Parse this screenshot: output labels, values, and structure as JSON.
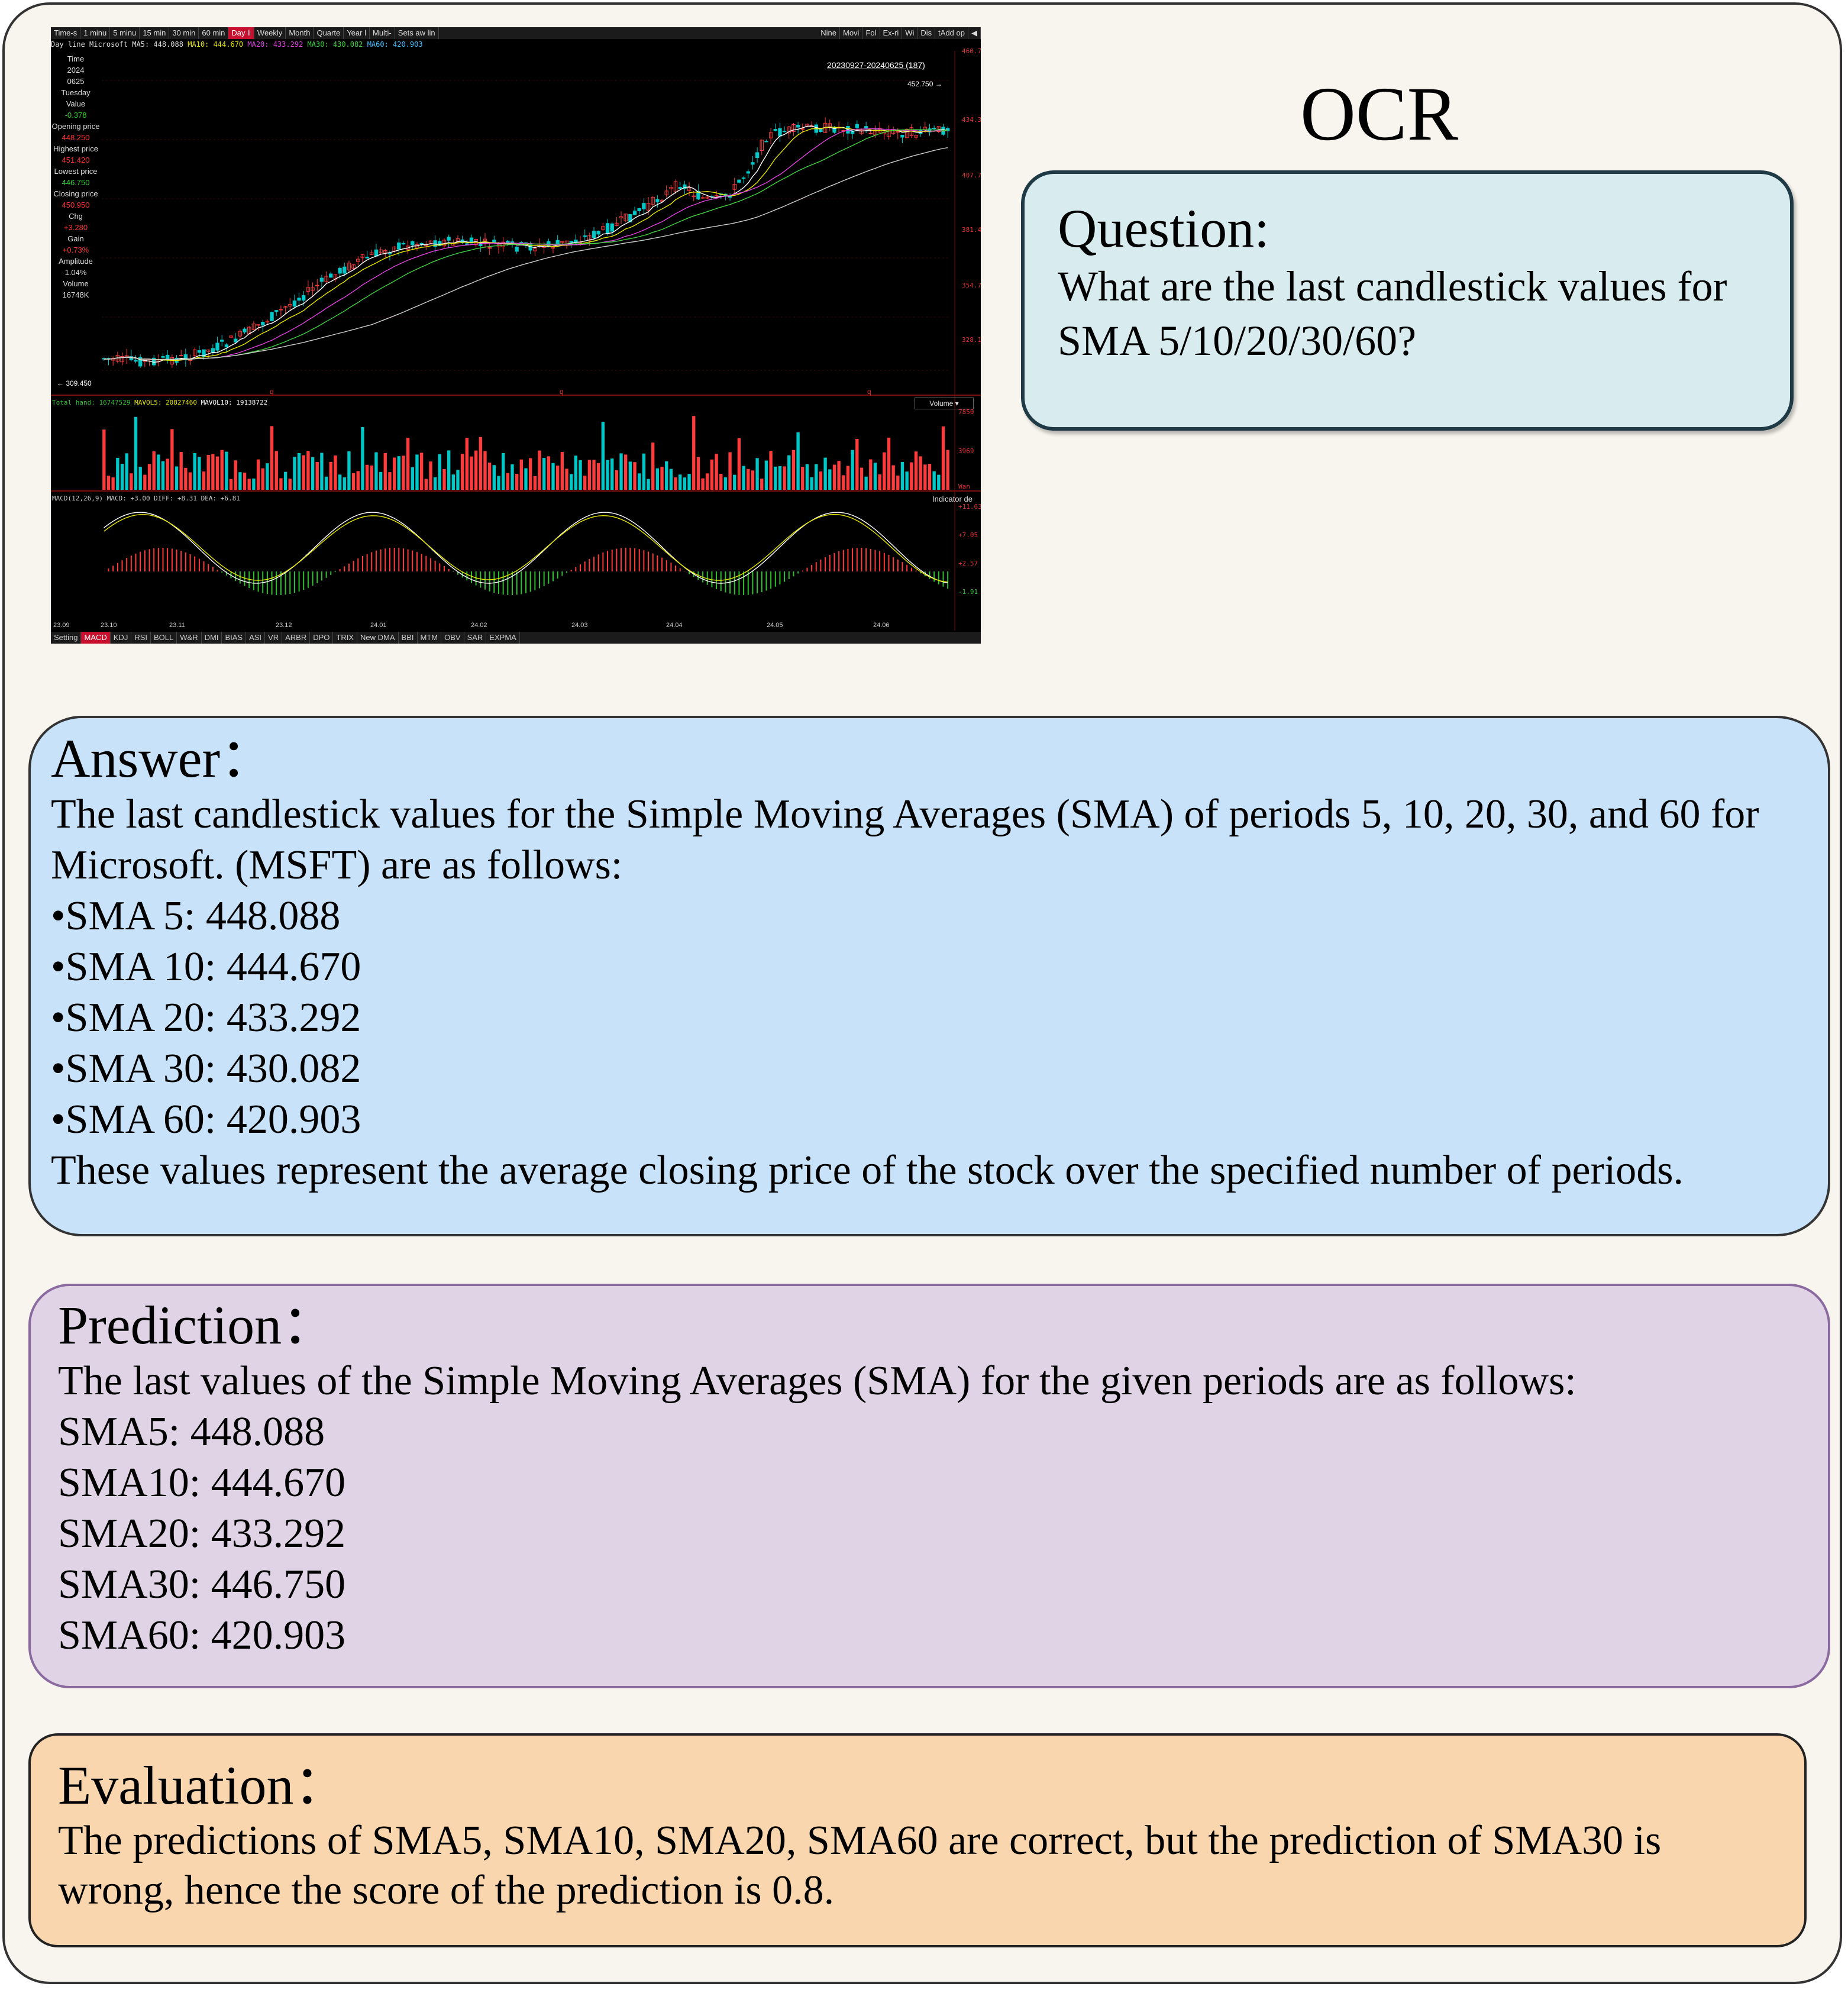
{
  "chart": {
    "toolbar_left": [
      "Time-s",
      "1 minu",
      "5 minu",
      "15 min",
      "30 min",
      "60 min",
      "Day li",
      "Weekly",
      "Month",
      "Quarte",
      "Year l",
      "Multi-",
      "Sets aw lin"
    ],
    "toolbar_active": "Day li",
    "toolbar_right": [
      "Nine",
      "Movi",
      "Fol",
      "Ex-ri",
      "Wi",
      "Dis",
      "tAdd op",
      "◀"
    ],
    "info_line": {
      "prefix": "Day line Microsoft",
      "ma5": "MA5: 448.088",
      "ma10": "MA10: 444.670",
      "ma20": "MA20: 433.292",
      "ma30": "MA30: 430.082",
      "ma60": "MA60: 420.903"
    },
    "sidebar": [
      {
        "label": "Time",
        "value": "2024",
        "class": "val"
      },
      {
        "label": "",
        "value": "0625",
        "class": "val"
      },
      {
        "label": "Tuesday",
        "value": "Value",
        "class": "val"
      },
      {
        "label": "",
        "value": "-0.378",
        "class": "grn"
      },
      {
        "label": "Opening price",
        "value": "448.250",
        "class": "red"
      },
      {
        "label": "Highest price",
        "value": "451.420",
        "class": "red"
      },
      {
        "label": "Lowest price",
        "value": "446.750",
        "class": "grn"
      },
      {
        "label": "Closing price",
        "value": "450.950",
        "class": "red"
      },
      {
        "label": "Chg",
        "value": "+3.280",
        "class": "red"
      },
      {
        "label": "Gain",
        "value": "+0.73%",
        "class": "red"
      },
      {
        "label": "Amplitude",
        "value": "1.04%",
        "class": "val"
      },
      {
        "label": "Volume",
        "value": "16748K",
        "class": "val"
      }
    ],
    "date_range": "20230927-20240625 (187)",
    "high_marker": "452.750",
    "low_marker": "309.450",
    "price_axis": [
      "460.71",
      "434.39",
      "407.74",
      "381.43",
      "354.78",
      "328.13"
    ],
    "volume_header": {
      "a": "Total hand: 16747529",
      "b": "MAVOL5: 20827460",
      "c": "MAVOL10: 19138722"
    },
    "volume_button": "Volume",
    "volume_axis": [
      "7850",
      "3969",
      "Wan"
    ],
    "macd_header": "MACD(12,26,9) MACD: +3.00 DIFF: +8.31 DEA: +6.81",
    "indicator_desc": "Indicator de",
    "macd_axis": [
      "+11.63",
      "+7.05",
      "+2.57",
      "-1.91"
    ],
    "date_axis": [
      "23.09",
      "23.10",
      "23.11",
      "23.12",
      "24.01",
      "24.02",
      "24.03",
      "24.04",
      "24.05",
      "24.06"
    ],
    "bottom_tabs": [
      "Setting",
      "MACD",
      "KDJ",
      "RSI",
      "BOLL",
      "W&R",
      "DMI",
      "BIAS",
      "ASI",
      "VR",
      "ARBR",
      "DPO",
      "TRIX",
      "New DMA",
      "BBI",
      "MTM",
      "OBV",
      "SAR",
      "EXPMA"
    ],
    "bottom_active": "MACD",
    "q_markers": [
      "q",
      "q",
      "q"
    ]
  },
  "ocr_title": "OCR",
  "question": {
    "heading": "Question:",
    "text": "What are the last candlestick values for SMA 5/10/20/30/60?"
  },
  "answer": {
    "heading": "Answer：",
    "intro": "The last candlestick values for the Simple Moving Averages (SMA) of periods 5, 10, 20, 30, and 60 for Microsoft. (MSFT) are as follows:",
    "items": [
      "•SMA 5: 448.088",
      "•SMA 10: 444.670",
      "•SMA 20: 433.292",
      "•SMA 30: 430.082",
      "•SMA 60: 420.903"
    ],
    "outro": "These values represent the average closing price of the stock over the specified number of periods."
  },
  "prediction": {
    "heading": "Prediction：",
    "intro": "The last values of the Simple Moving Averages (SMA) for the given periods are as follows:",
    "items": [
      "SMA5: 448.088",
      "SMA10: 444.670",
      "SMA20: 433.292",
      "SMA30: 446.750",
      "SMA60: 420.903"
    ]
  },
  "evaluation": {
    "heading": "Evaluation：",
    "text": "The predictions of SMA5, SMA10, SMA20, SMA60 are correct, but the prediction of SMA30 is wrong, hence the score of the prediction is 0.8."
  }
}
